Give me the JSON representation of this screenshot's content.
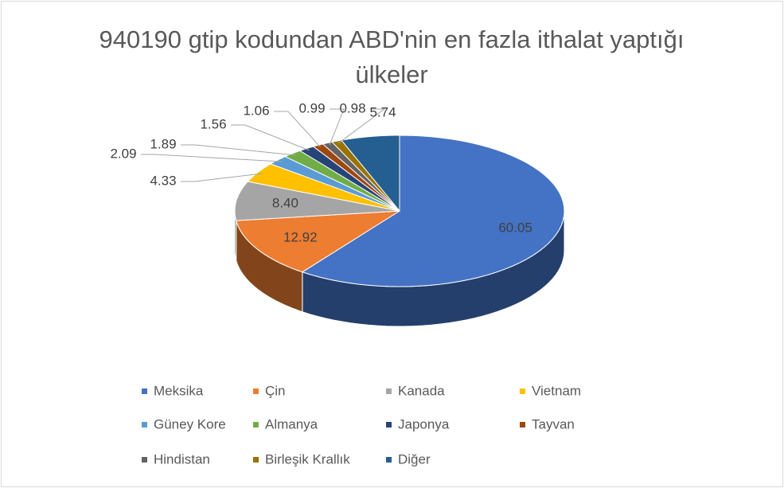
{
  "chart_data": {
    "type": "pie",
    "title": "940190 gtip kodundan ABD'nin en fazla ithalat yaptığı ülkeler",
    "categories": [
      "Meksika",
      "Çin",
      "Kanada",
      "Vietnam",
      "Güney Kore",
      "Almanya",
      "Japonya",
      "Tayvan",
      "Hindistan",
      "Birleşik Krallık",
      "Diğer"
    ],
    "values": [
      60.05,
      12.92,
      8.4,
      4.33,
      2.09,
      1.89,
      1.56,
      1.06,
      0.99,
      0.98,
      5.74
    ],
    "value_labels": [
      "60.05",
      "12.92",
      "8.40",
      "4.33",
      "2.09",
      "1.89",
      "1.56",
      "1.06",
      "0.99",
      "0.98",
      "5.74"
    ],
    "colors": [
      "#4472c4",
      "#ed7d31",
      "#a5a5a5",
      "#ffc000",
      "#5b9bd5",
      "#70ad47",
      "#264478",
      "#9e480e",
      "#636363",
      "#997300",
      "#255e91"
    ],
    "legend": "bottom",
    "three_d": true
  }
}
